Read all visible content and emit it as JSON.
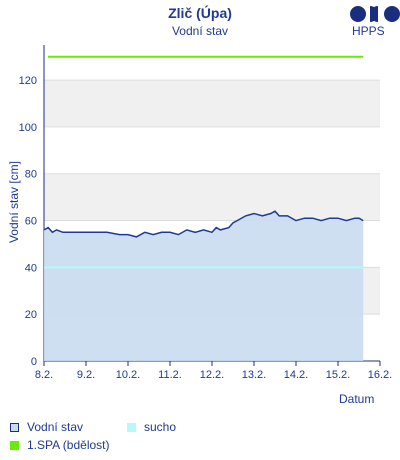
{
  "header": {
    "title": "Zlič (Úpa)",
    "subtitle": "Vodní stav",
    "logo_text": "HPPS"
  },
  "chart_data": {
    "type": "line",
    "xlabel": "Datum",
    "ylabel": "Vodní stav [cm]",
    "x_ticks": [
      "8.2.",
      "9.2.",
      "10.2.",
      "11.2.",
      "12.2.",
      "13.2.",
      "14.2.",
      "15.2.",
      "16.2."
    ],
    "y_ticks": [
      0,
      20,
      40,
      60,
      80,
      100,
      120
    ],
    "ylim": [
      0,
      135
    ],
    "xlim_days": [
      0,
      8
    ],
    "series": [
      {
        "name": "Vodní stav",
        "color": "#1f3a93",
        "fill": "#c8dcf0",
        "x_day_offsets": [
          0.0,
          0.1,
          0.2,
          0.3,
          0.45,
          0.5,
          1.0,
          1.5,
          1.8,
          2.0,
          2.2,
          2.4,
          2.6,
          2.8,
          3.0,
          3.2,
          3.4,
          3.6,
          3.8,
          4.0,
          4.1,
          4.2,
          4.4,
          4.5,
          4.6,
          4.8,
          5.0,
          5.2,
          5.4,
          5.5,
          5.6,
          5.8,
          6.0,
          6.2,
          6.4,
          6.6,
          6.8,
          7.0,
          7.2,
          7.4,
          7.5,
          7.6
        ],
        "values": [
          56,
          57,
          55,
          56,
          55,
          55,
          55,
          55,
          54,
          54,
          53,
          55,
          54,
          55,
          55,
          54,
          56,
          55,
          56,
          55,
          57,
          56,
          57,
          59,
          60,
          62,
          63,
          62,
          63,
          64,
          62,
          62,
          60,
          61,
          61,
          60,
          61,
          61,
          60,
          61,
          61,
          60
        ]
      },
      {
        "name": "sucho",
        "color": "#b8f8f8",
        "value": 40
      },
      {
        "name": "1.SPA (bdělost)",
        "color": "#66ee00",
        "value": 130
      }
    ],
    "grid": true,
    "legend_position": "bottom"
  }
}
